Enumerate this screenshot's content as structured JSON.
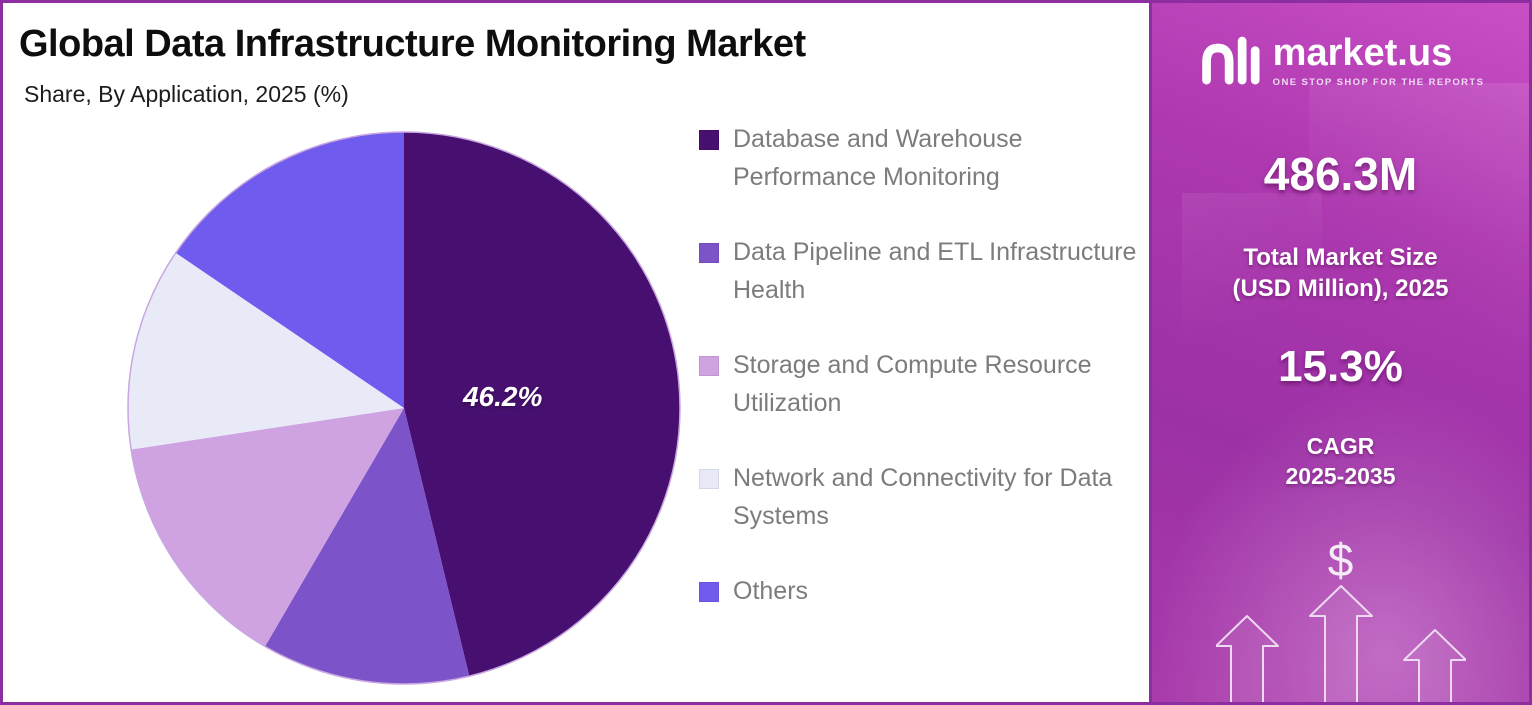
{
  "header": {
    "title": "Global Data Infrastructure Monitoring Market",
    "subtitle": "Share, By Application, 2025 (%)"
  },
  "chart_data": {
    "type": "pie",
    "title": "Global Data Infrastructure Monitoring Market Share, By Application, 2025 (%)",
    "start_angle_deg": -90,
    "direction": "clockwise",
    "legend_position": "right",
    "categories": [
      "Database and Warehouse Performance Monitoring",
      "Data Pipeline and ETL Infrastructure Health",
      "Storage and Compute Resource Utilization",
      "Network and Connectivity for Data Systems",
      "Others"
    ],
    "values": [
      46.2,
      12.2,
      14.2,
      11.9,
      15.5
    ],
    "colors": [
      "#471070",
      "#7D53C9",
      "#CFA3E2",
      "#E9EAF8",
      "#6F5CEF"
    ],
    "data_labels": [
      "46.2%",
      "",
      "",
      "",
      ""
    ]
  },
  "sidebar": {
    "brand": {
      "name": "market.us",
      "tagline": "ONE STOP SHOP FOR THE REPORTS"
    },
    "market_size_value": "486.3M",
    "market_size_label_line1": "Total Market Size",
    "market_size_label_line2": "(USD Million), 2025",
    "cagr_value": "15.3%",
    "cagr_label_line1": "CAGR",
    "cagr_label_line2": "2025-2035",
    "dollar_icon": "$",
    "colors": {
      "gradient_top": "#C94FC5",
      "gradient_bottom": "#9C31A5",
      "border": "#8C2DA0"
    }
  }
}
